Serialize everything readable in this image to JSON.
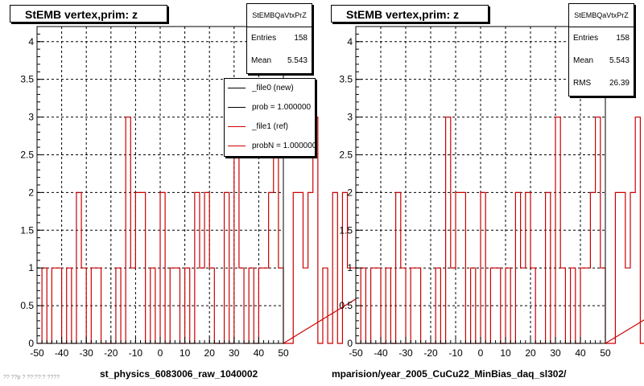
{
  "chart_data": [
    {
      "type": "histogram",
      "title": "StEMB  vertex,prim: z",
      "xlim": [
        -50,
        50
      ],
      "ylim": [
        0,
        4.2
      ],
      "x_ticks": [
        -50,
        -40,
        -30,
        -20,
        -10,
        0,
        10,
        20,
        30,
        40,
        50
      ],
      "y_ticks": [
        0,
        0.5,
        1,
        1.5,
        2,
        2.5,
        3,
        3.5,
        4
      ],
      "grid": true,
      "bin_width": 2,
      "bin_edges_start": -50,
      "series": [
        {
          "name": "_file1 (ref)",
          "color": "#cc0000",
          "values": [
            0,
            1,
            0,
            1,
            1,
            0,
            1,
            0,
            2,
            1,
            0,
            1,
            1,
            0,
            0,
            0,
            1,
            0,
            3,
            1,
            2,
            2,
            0,
            1,
            0,
            2,
            0,
            1,
            1,
            0,
            1,
            0,
            2,
            1,
            2,
            1,
            0,
            0,
            2,
            0,
            3,
            1,
            0,
            1,
            0,
            1,
            1,
            2,
            3,
            1,
            0,
            0,
            2,
            2,
            1,
            2,
            3,
            0,
            1,
            0,
            2,
            0,
            2,
            1,
            1,
            2,
            1,
            1,
            0,
            2,
            0,
            2,
            0,
            0,
            0,
            3,
            1,
            4,
            3,
            2,
            1,
            0,
            0,
            1,
            2,
            3,
            0,
            2,
            0,
            3,
            1,
            2,
            1,
            2,
            0,
            0,
            2,
            1,
            1,
            2
          ]
        }
      ],
      "footer": "st_physics_6083006_raw_1040002",
      "stats": {
        "name": "StEMBQaVtxPrZ",
        "entries": "158",
        "mean": "5.543"
      },
      "legend": [
        {
          "label": "_file0 (new)",
          "color": "#000000"
        },
        {
          "label": "prob = 1.000000",
          "color": "#000000"
        },
        {
          "label": "_file1 (ref)",
          "color": "#cc0000"
        },
        {
          "label": "probN = 1.000000",
          "color": "#cc0000"
        }
      ]
    },
    {
      "type": "histogram",
      "title": "StEMB  vertex,prim: z",
      "xlim": [
        -50,
        50
      ],
      "ylim": [
        0,
        4.2
      ],
      "x_ticks": [
        -50,
        -40,
        -30,
        -20,
        -10,
        0,
        10,
        20,
        30,
        40,
        50
      ],
      "y_ticks": [
        0,
        0.5,
        1,
        1.5,
        2,
        2.5,
        3,
        3.5,
        4
      ],
      "grid": true,
      "bin_width": 2,
      "bin_edges_start": -50,
      "series": [
        {
          "name": "_file1 (ref)",
          "color": "#cc0000",
          "values": [
            0,
            1,
            0,
            1,
            1,
            0,
            1,
            0,
            2,
            1,
            0,
            1,
            1,
            0,
            0,
            0,
            1,
            0,
            3,
            1,
            2,
            2,
            0,
            1,
            0,
            2,
            0,
            1,
            1,
            0,
            1,
            0,
            2,
            1,
            2,
            1,
            0,
            0,
            2,
            0,
            3,
            1,
            0,
            1,
            0,
            1,
            1,
            2,
            3,
            1,
            0,
            0,
            2,
            2,
            1,
            2,
            3,
            0,
            1,
            0,
            2,
            0,
            2,
            1,
            1,
            2,
            1,
            1,
            0,
            2,
            0,
            2,
            0,
            0,
            0,
            3,
            1,
            4,
            3,
            2,
            1,
            0,
            0,
            1,
            2,
            3,
            0,
            2,
            0,
            3,
            1,
            2,
            1,
            2,
            0,
            0,
            2,
            1,
            1,
            2
          ]
        }
      ],
      "footer": "mparision/year_2005_CuCu22_MinBias_daq_sl302/",
      "stats": {
        "name": "StEMBQaVtxPrZ",
        "entries": "158",
        "mean": "5.543",
        "rms": "26.39"
      }
    }
  ],
  "ui": {
    "stat_labels": {
      "entries": "Entries",
      "mean": "Mean",
      "rms": "RMS"
    },
    "corner_note": "?? ??p ? ??:??:? ????"
  }
}
